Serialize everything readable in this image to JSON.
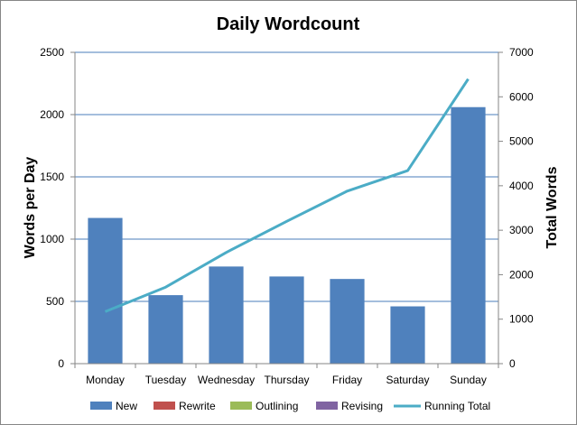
{
  "chart_data": {
    "type": "bar",
    "title": "Daily Wordcount",
    "ylabel": "Words per Day",
    "y2label": "Total Words",
    "categories": [
      "Monday",
      "Tuesday",
      "Wednesday",
      "Thursday",
      "Friday",
      "Saturday",
      "Sunday"
    ],
    "ylim": [
      0,
      2500
    ],
    "y2lim": [
      0,
      7000
    ],
    "yticks": [
      0,
      500,
      1000,
      1500,
      2000,
      2500
    ],
    "y2ticks": [
      0,
      1000,
      2000,
      3000,
      4000,
      5000,
      6000,
      7000
    ],
    "grid": true,
    "legend_position": "bottom",
    "series": [
      {
        "name": "New",
        "type": "bar",
        "axis": "left",
        "color": "#4F81BD",
        "values": [
          1170,
          550,
          780,
          700,
          680,
          460,
          2060
        ]
      },
      {
        "name": "Rewrite",
        "type": "bar",
        "axis": "left",
        "color": "#C0504D",
        "values": [
          0,
          0,
          0,
          0,
          0,
          0,
          0
        ]
      },
      {
        "name": "Outlining",
        "type": "bar",
        "axis": "left",
        "color": "#9BBB59",
        "values": [
          0,
          0,
          0,
          0,
          0,
          0,
          0
        ]
      },
      {
        "name": "Revising",
        "type": "bar",
        "axis": "left",
        "color": "#8064A2",
        "values": [
          0,
          0,
          0,
          0,
          0,
          0,
          0
        ]
      },
      {
        "name": "Running Total",
        "type": "line",
        "axis": "right",
        "color": "#4BACC6",
        "values": [
          1170,
          1720,
          2500,
          3200,
          3880,
          4340,
          6400
        ]
      }
    ]
  }
}
